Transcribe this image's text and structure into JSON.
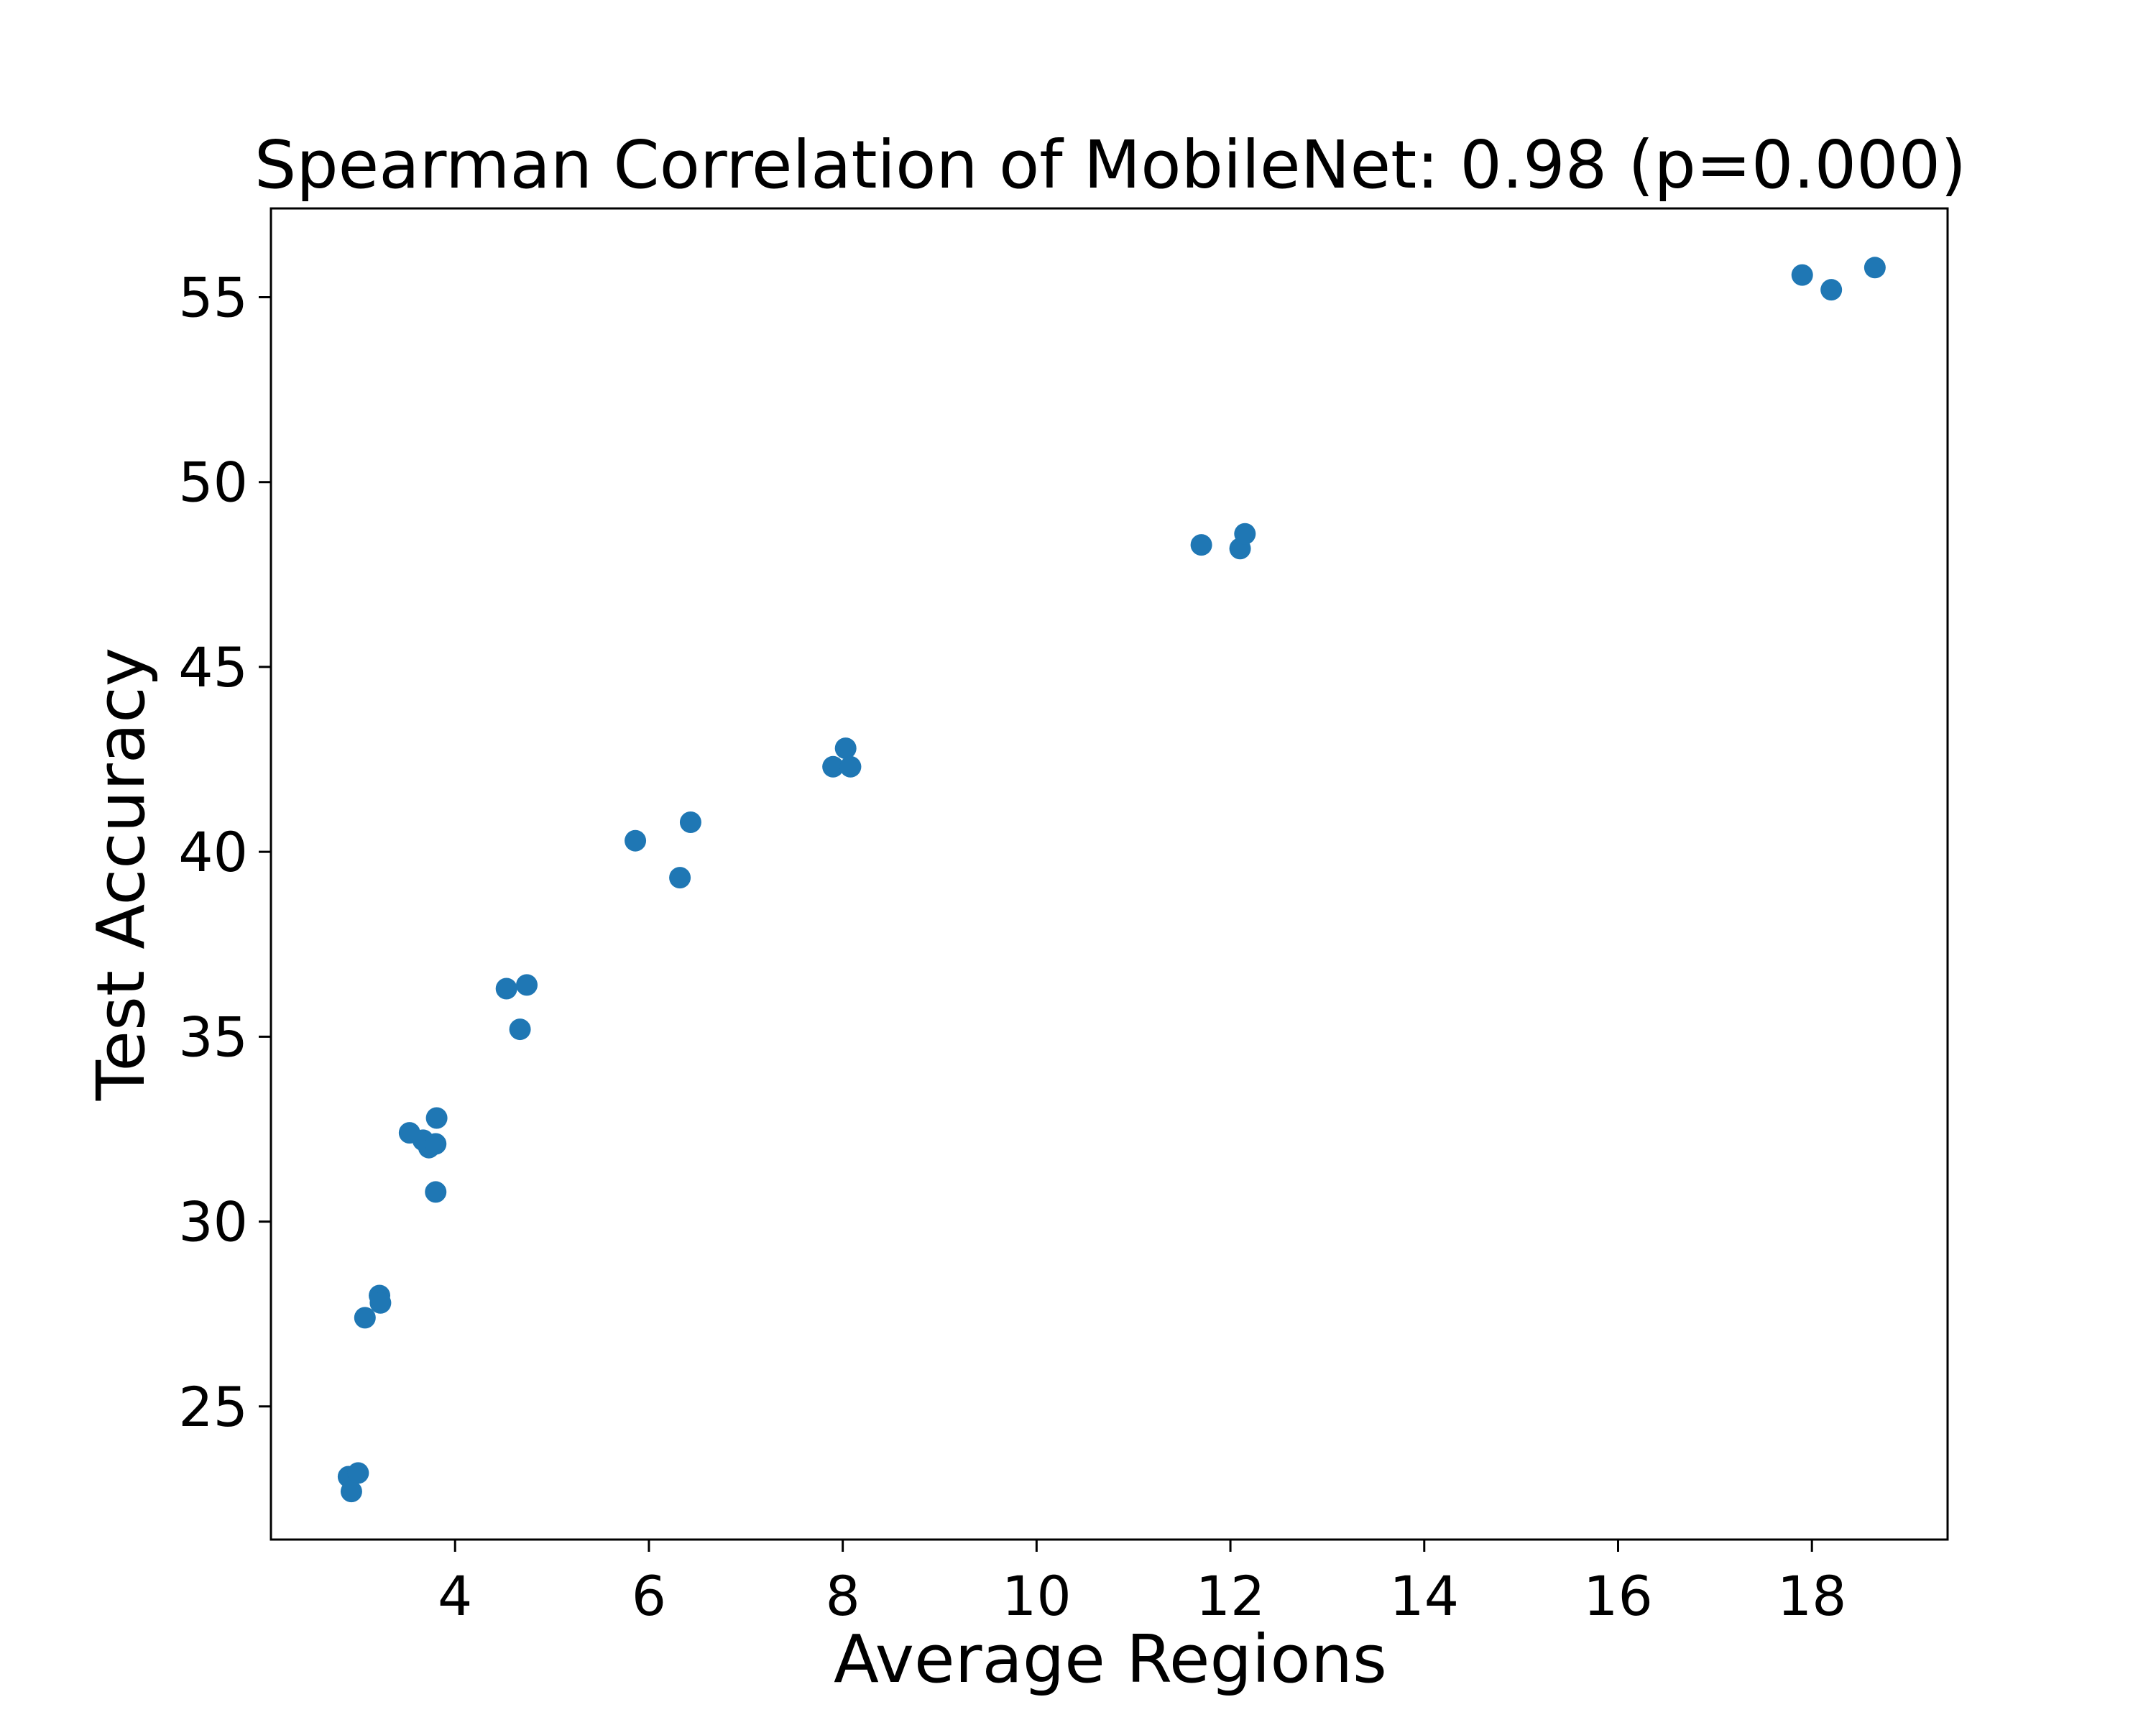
{
  "chart_data": {
    "type": "scatter",
    "title": "Spearman Correlation of MobileNet: 0.98 (p=0.000)",
    "xlabel": "Average Regions",
    "ylabel": "Test Accuracy",
    "xlim": [
      2.1,
      19.4
    ],
    "ylim": [
      21.4,
      57.4
    ],
    "xticks": [
      4,
      6,
      8,
      10,
      12,
      14,
      16,
      18
    ],
    "yticks": [
      25,
      30,
      35,
      40,
      45,
      50,
      55
    ],
    "grid": false,
    "legend": "none",
    "marker_color": "#1f77b4",
    "series": [
      {
        "points": [
          {
            "x": 2.9,
            "y": 23.1
          },
          {
            "x": 2.93,
            "y": 22.7
          },
          {
            "x": 3.0,
            "y": 23.2
          },
          {
            "x": 3.07,
            "y": 27.4
          },
          {
            "x": 3.22,
            "y": 28.0
          },
          {
            "x": 3.23,
            "y": 27.8
          },
          {
            "x": 3.53,
            "y": 32.4
          },
          {
            "x": 3.67,
            "y": 32.2
          },
          {
            "x": 3.73,
            "y": 32.0
          },
          {
            "x": 3.8,
            "y": 32.1
          },
          {
            "x": 3.81,
            "y": 32.8
          },
          {
            "x": 3.8,
            "y": 30.8
          },
          {
            "x": 4.53,
            "y": 36.3
          },
          {
            "x": 4.67,
            "y": 35.2
          },
          {
            "x": 4.74,
            "y": 36.4
          },
          {
            "x": 5.86,
            "y": 40.3
          },
          {
            "x": 6.32,
            "y": 39.3
          },
          {
            "x": 6.43,
            "y": 40.8
          },
          {
            "x": 7.9,
            "y": 42.3
          },
          {
            "x": 8.03,
            "y": 42.8
          },
          {
            "x": 8.08,
            "y": 42.3
          },
          {
            "x": 11.7,
            "y": 48.3
          },
          {
            "x": 12.1,
            "y": 48.2
          },
          {
            "x": 12.15,
            "y": 48.6
          },
          {
            "x": 17.9,
            "y": 55.6
          },
          {
            "x": 18.2,
            "y": 55.2
          },
          {
            "x": 18.65,
            "y": 55.8
          }
        ]
      }
    ]
  }
}
